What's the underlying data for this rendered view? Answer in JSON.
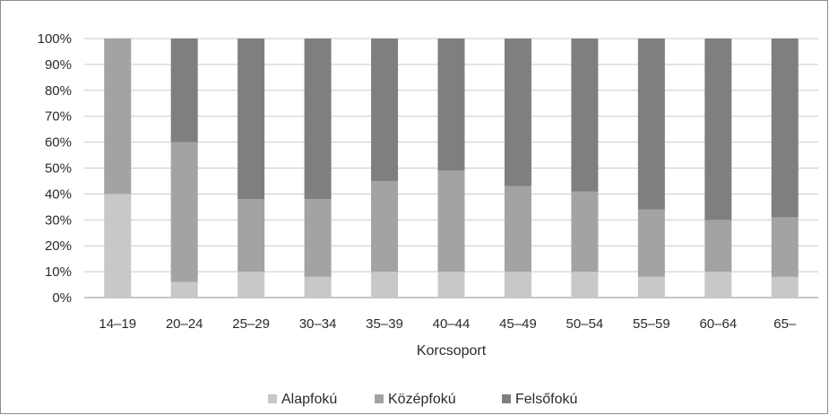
{
  "chart_data": {
    "type": "bar",
    "stacked": true,
    "percent_stacked": true,
    "categories": [
      "14–19",
      "20–24",
      "25–29",
      "30–34",
      "35–39",
      "40–44",
      "45–49",
      "50–54",
      "55–59",
      "60–64",
      "65–"
    ],
    "series": [
      {
        "name": "Alapfokú",
        "color": "#c8c8c8",
        "values": [
          40,
          6,
          10,
          8,
          10,
          10,
          10,
          10,
          8,
          10,
          8
        ]
      },
      {
        "name": "Középfokú",
        "color": "#a3a3a3",
        "values": [
          60,
          54,
          28,
          30,
          35,
          39,
          33,
          31,
          26,
          20,
          23
        ]
      },
      {
        "name": "Felsőfokú",
        "color": "#7f7f7f",
        "values": [
          0,
          40,
          62,
          62,
          55,
          51,
          57,
          59,
          66,
          70,
          69
        ]
      }
    ],
    "y_ticks": [
      "0%",
      "10%",
      "20%",
      "30%",
      "40%",
      "50%",
      "60%",
      "70%",
      "80%",
      "90%",
      "100%"
    ],
    "ylim": [
      0,
      100
    ],
    "xlabel": "Korcsoport",
    "ylabel": "",
    "grid": true,
    "legend_position": "bottom"
  }
}
